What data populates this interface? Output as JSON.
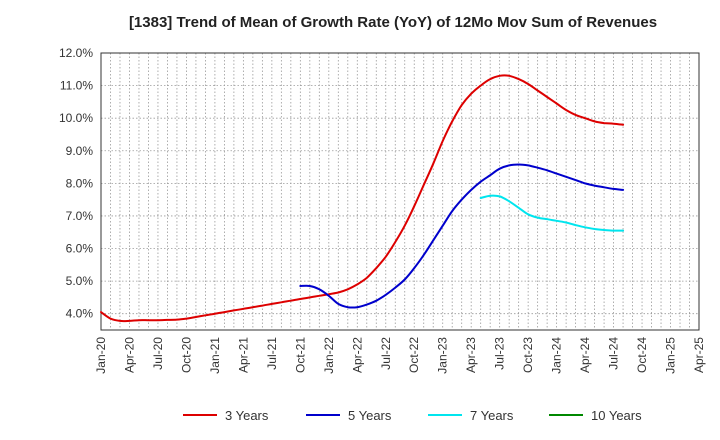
{
  "chart_data": {
    "type": "line",
    "title": "[1383]  Trend of Mean of Growth Rate (YoY) of 12Mo Mov Sum of Revenues",
    "xlabel": "",
    "ylabel": "",
    "x_ticks": [
      "Jan-20",
      "Apr-20",
      "Jul-20",
      "Oct-20",
      "Jan-21",
      "Apr-21",
      "Jul-21",
      "Oct-21",
      "Jan-22",
      "Apr-22",
      "Jul-22",
      "Oct-22",
      "Jan-23",
      "Apr-23",
      "Jul-23",
      "Oct-23",
      "Jan-24",
      "Apr-24",
      "Jul-24",
      "Oct-24",
      "Jan-25",
      "Apr-25"
    ],
    "y_ticks": [
      "4.0%",
      "5.0%",
      "6.0%",
      "7.0%",
      "8.0%",
      "9.0%",
      "10.0%",
      "11.0%",
      "12.0%"
    ],
    "y_tick_values": [
      4,
      5,
      6,
      7,
      8,
      9,
      10,
      11,
      12
    ],
    "ylim": [
      3.5,
      12.0
    ],
    "x_range_months": [
      0,
      63
    ],
    "grid": true,
    "legend_position": "bottom",
    "series": [
      {
        "name": "3 Years",
        "color": "#dd0000",
        "points": [
          [
            0,
            4.05
          ],
          [
            1,
            3.85
          ],
          [
            2,
            3.78
          ],
          [
            3,
            3.78
          ],
          [
            4,
            3.8
          ],
          [
            5,
            3.8
          ],
          [
            6,
            3.8
          ],
          [
            7,
            3.81
          ],
          [
            8,
            3.82
          ],
          [
            9,
            3.85
          ],
          [
            10,
            3.9
          ],
          [
            11,
            3.95
          ],
          [
            12,
            4.0
          ],
          [
            13,
            4.05
          ],
          [
            14,
            4.1
          ],
          [
            15,
            4.15
          ],
          [
            16,
            4.2
          ],
          [
            17,
            4.25
          ],
          [
            18,
            4.3
          ],
          [
            19,
            4.35
          ],
          [
            20,
            4.4
          ],
          [
            21,
            4.45
          ],
          [
            22,
            4.5
          ],
          [
            23,
            4.55
          ],
          [
            24,
            4.6
          ],
          [
            25,
            4.65
          ],
          [
            26,
            4.75
          ],
          [
            27,
            4.9
          ],
          [
            28,
            5.1
          ],
          [
            29,
            5.4
          ],
          [
            30,
            5.75
          ],
          [
            31,
            6.2
          ],
          [
            32,
            6.7
          ],
          [
            33,
            7.3
          ],
          [
            34,
            7.95
          ],
          [
            35,
            8.6
          ],
          [
            36,
            9.3
          ],
          [
            37,
            9.9
          ],
          [
            38,
            10.4
          ],
          [
            39,
            10.75
          ],
          [
            40,
            11.0
          ],
          [
            41,
            11.2
          ],
          [
            42,
            11.3
          ],
          [
            43,
            11.3
          ],
          [
            44,
            11.2
          ],
          [
            45,
            11.05
          ],
          [
            46,
            10.85
          ],
          [
            47,
            10.65
          ],
          [
            48,
            10.45
          ],
          [
            49,
            10.25
          ],
          [
            50,
            10.1
          ],
          [
            51,
            10.0
          ],
          [
            52,
            9.9
          ],
          [
            53,
            9.85
          ],
          [
            54,
            9.83
          ],
          [
            55,
            9.8
          ]
        ]
      },
      {
        "name": "5 Years",
        "color": "#0000cc",
        "points": [
          [
            21,
            4.85
          ],
          [
            22,
            4.85
          ],
          [
            23,
            4.75
          ],
          [
            24,
            4.55
          ],
          [
            25,
            4.3
          ],
          [
            26,
            4.2
          ],
          [
            27,
            4.2
          ],
          [
            28,
            4.28
          ],
          [
            29,
            4.4
          ],
          [
            30,
            4.58
          ],
          [
            31,
            4.8
          ],
          [
            32,
            5.05
          ],
          [
            33,
            5.4
          ],
          [
            34,
            5.8
          ],
          [
            35,
            6.25
          ],
          [
            36,
            6.7
          ],
          [
            37,
            7.15
          ],
          [
            38,
            7.5
          ],
          [
            39,
            7.8
          ],
          [
            40,
            8.05
          ],
          [
            41,
            8.25
          ],
          [
            42,
            8.45
          ],
          [
            43,
            8.55
          ],
          [
            44,
            8.58
          ],
          [
            45,
            8.55
          ],
          [
            46,
            8.48
          ],
          [
            47,
            8.4
          ],
          [
            48,
            8.3
          ],
          [
            49,
            8.2
          ],
          [
            50,
            8.1
          ],
          [
            51,
            8.0
          ],
          [
            52,
            7.93
          ],
          [
            53,
            7.88
          ],
          [
            54,
            7.83
          ],
          [
            55,
            7.8
          ]
        ]
      },
      {
        "name": "7 Years",
        "color": "#00e5ee",
        "points": [
          [
            40,
            7.55
          ],
          [
            41,
            7.62
          ],
          [
            42,
            7.6
          ],
          [
            43,
            7.45
          ],
          [
            44,
            7.25
          ],
          [
            45,
            7.05
          ],
          [
            46,
            6.95
          ],
          [
            47,
            6.9
          ],
          [
            48,
            6.85
          ],
          [
            49,
            6.8
          ],
          [
            50,
            6.72
          ],
          [
            51,
            6.65
          ],
          [
            52,
            6.6
          ],
          [
            53,
            6.57
          ],
          [
            54,
            6.55
          ],
          [
            55,
            6.55
          ]
        ]
      },
      {
        "name": "10 Years",
        "color": "#008800",
        "points": []
      }
    ]
  }
}
